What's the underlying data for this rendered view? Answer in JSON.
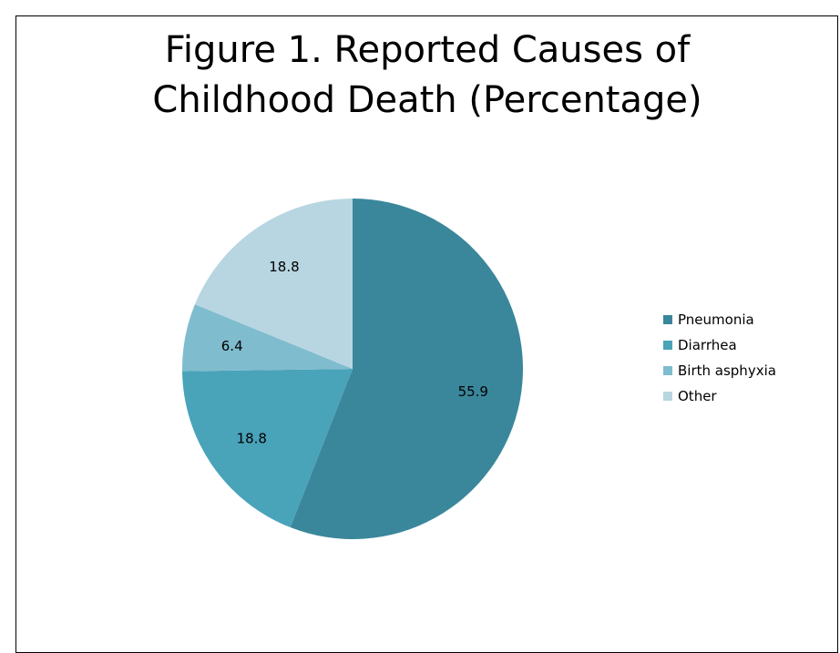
{
  "chart_data": {
    "type": "pie",
    "title": "Figure 1. Reported Causes of Childhood Death (Percentage)",
    "title_lines": [
      "Figure 1. Reported Causes of",
      "Childhood Death (Percentage)"
    ],
    "categories": [
      "Pneumonia",
      "Diarrhea",
      "Birth asphyxia",
      "Other"
    ],
    "values": [
      55.9,
      18.8,
      6.4,
      18.8
    ],
    "data_labels": [
      "55.9",
      "18.8",
      "6.4",
      "18.8"
    ],
    "colors": [
      "#3a879b",
      "#49a3b9",
      "#7fbcce",
      "#b7d6e1"
    ],
    "start_angle_deg": 0,
    "direction": "clockwise",
    "legend_position": "right"
  }
}
